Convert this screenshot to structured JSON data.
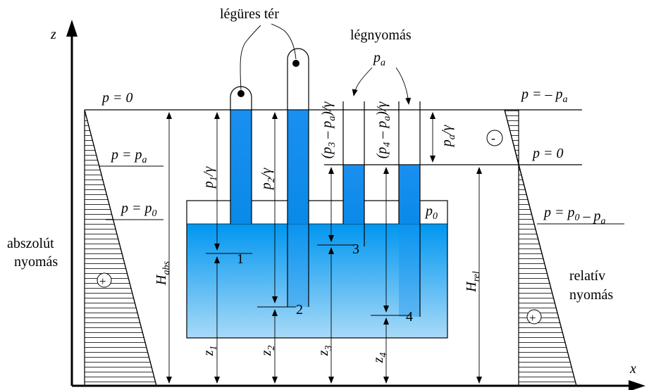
{
  "labels": {
    "vacuum": "légüres tér",
    "atmospheric_pressure": "légnyomás",
    "pa": "pa",
    "p_zero_left": "p = 0",
    "p_pa_left": "p = pa",
    "p_p0_left": "p = p0",
    "p_neg_pa_right": "p = – pa",
    "p_zero_right": "p = 0",
    "p_p0_minus_pa_right": "p = p0 – pa",
    "absolute_pressure_line1": "abszolút",
    "absolute_pressure_line2": "nyomás",
    "relative_pressure_line1": "relatív",
    "relative_pressure_line2": "nyomás",
    "p0_tank": "p0",
    "axis_z": "z",
    "axis_x": "x",
    "plus": "+",
    "minus": "-",
    "H_abs": "Habs",
    "H_rel": "Hrel",
    "p1_gamma": "p1/γ",
    "p2_gamma": "p2/γ",
    "p3_pa_gamma": "(p3 – pa)/γ",
    "p4_pa_gamma": "(p4 – pa)/γ",
    "pa_gamma": "pa/γ",
    "point1": "1",
    "point2": "2",
    "point3": "3",
    "point4": "4",
    "z1": "z1",
    "z2": "z2",
    "z3": "z3",
    "z4": "z4"
  },
  "colors": {
    "water_top": "#0096f0",
    "water_bottom": "#9fd4f6",
    "tube_water": "#1e90f0",
    "line": "#000000",
    "background": "#ffffff"
  }
}
